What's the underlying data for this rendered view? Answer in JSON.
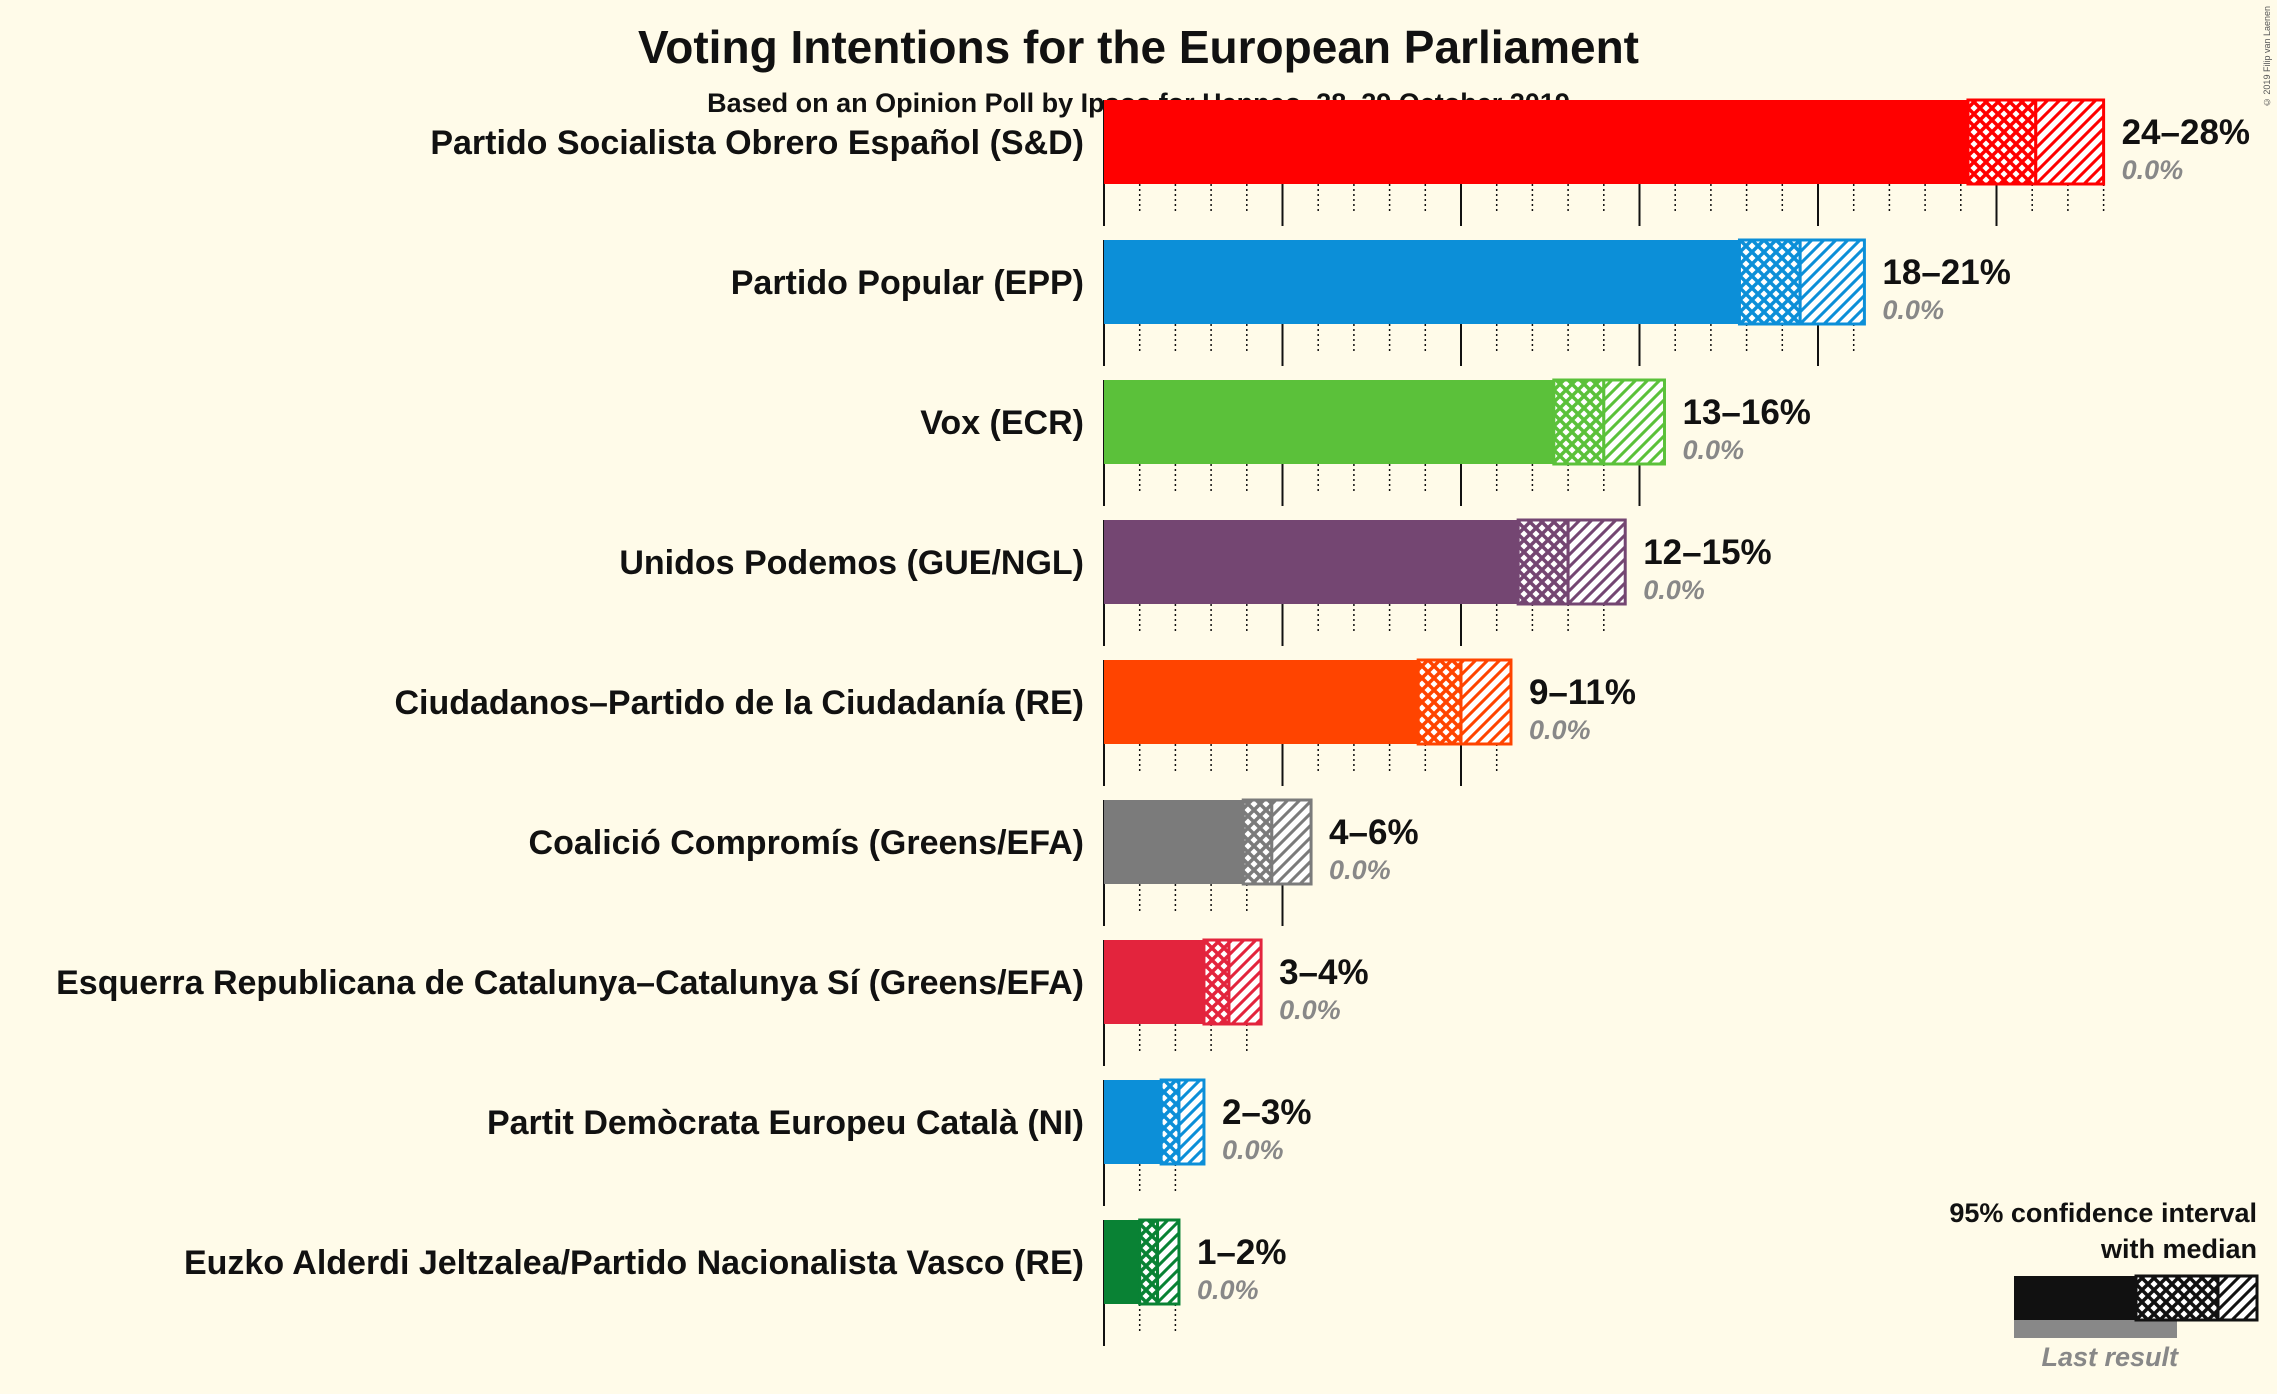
{
  "title": "Voting Intentions for the European Parliament",
  "subtitle": "Based on an Opinion Poll by Ipsos for Henneo, 28–29 October 2019",
  "copyright": "© 2019 Filip van Laenen",
  "legend": {
    "line1": "95% confidence interval",
    "line2": "with median",
    "last_result": "Last result"
  },
  "chart_data": {
    "type": "bar",
    "orientation": "horizontal",
    "title": "Voting Intentions for the European Parliament",
    "subtitle": "Based on an Opinion Poll by Ipsos for Henneo, 28–29 October 2019",
    "x_range_percent": [
      0,
      28
    ],
    "gridlines": "major every 5%, minor dotted every 1%",
    "parties": [
      {
        "name": "Partido Socialista Obrero Español (S&D)",
        "color": "#ff0000",
        "ci_low": 24.2,
        "median": 26.1,
        "ci_high": 28.0,
        "range_label": "24–28%",
        "last_result_label": "0.0%"
      },
      {
        "name": "Partido Popular (EPP)",
        "color": "#0c8fd8",
        "ci_low": 17.8,
        "median": 19.5,
        "ci_high": 21.3,
        "range_label": "18–21%",
        "last_result_label": "0.0%"
      },
      {
        "name": "Vox (ECR)",
        "color": "#5bc13a",
        "ci_low": 12.6,
        "median": 14.0,
        "ci_high": 15.7,
        "range_label": "13–16%",
        "last_result_label": "0.0%"
      },
      {
        "name": "Unidos Podemos (GUE/NGL)",
        "color": "#744672",
        "ci_low": 11.6,
        "median": 13.0,
        "ci_high": 14.6,
        "range_label": "12–15%",
        "last_result_label": "0.0%"
      },
      {
        "name": "Ciudadanos–Partido de la Ciudadanía (RE)",
        "color": "#ff4400",
        "ci_low": 8.8,
        "median": 10.0,
        "ci_high": 11.4,
        "range_label": "9–11%",
        "last_result_label": "0.0%"
      },
      {
        "name": "Coalició Compromís (Greens/EFA)",
        "color": "#7b7b7b",
        "ci_low": 3.9,
        "median": 4.7,
        "ci_high": 5.8,
        "range_label": "4–6%",
        "last_result_label": "0.0%"
      },
      {
        "name": "Esquerra Republicana de Catalunya–Catalunya Sí (Greens/EFA)",
        "color": "#e3243d",
        "ci_low": 2.8,
        "median": 3.5,
        "ci_high": 4.4,
        "range_label": "3–4%",
        "last_result_label": "0.0%"
      },
      {
        "name": "Partit Demòcrata Europeu Català (NI)",
        "color": "#0c8fd8",
        "ci_low": 1.6,
        "median": 2.1,
        "ci_high": 2.8,
        "range_label": "2–3%",
        "last_result_label": "0.0%"
      },
      {
        "name": "Euzko Alderdi Jeltzalea/Partido Nacionalista Vasco (RE)",
        "color": "#098234",
        "ci_low": 1.0,
        "median": 1.5,
        "ci_high": 2.1,
        "range_label": "1–2%",
        "last_result_label": "0.0%"
      }
    ]
  }
}
